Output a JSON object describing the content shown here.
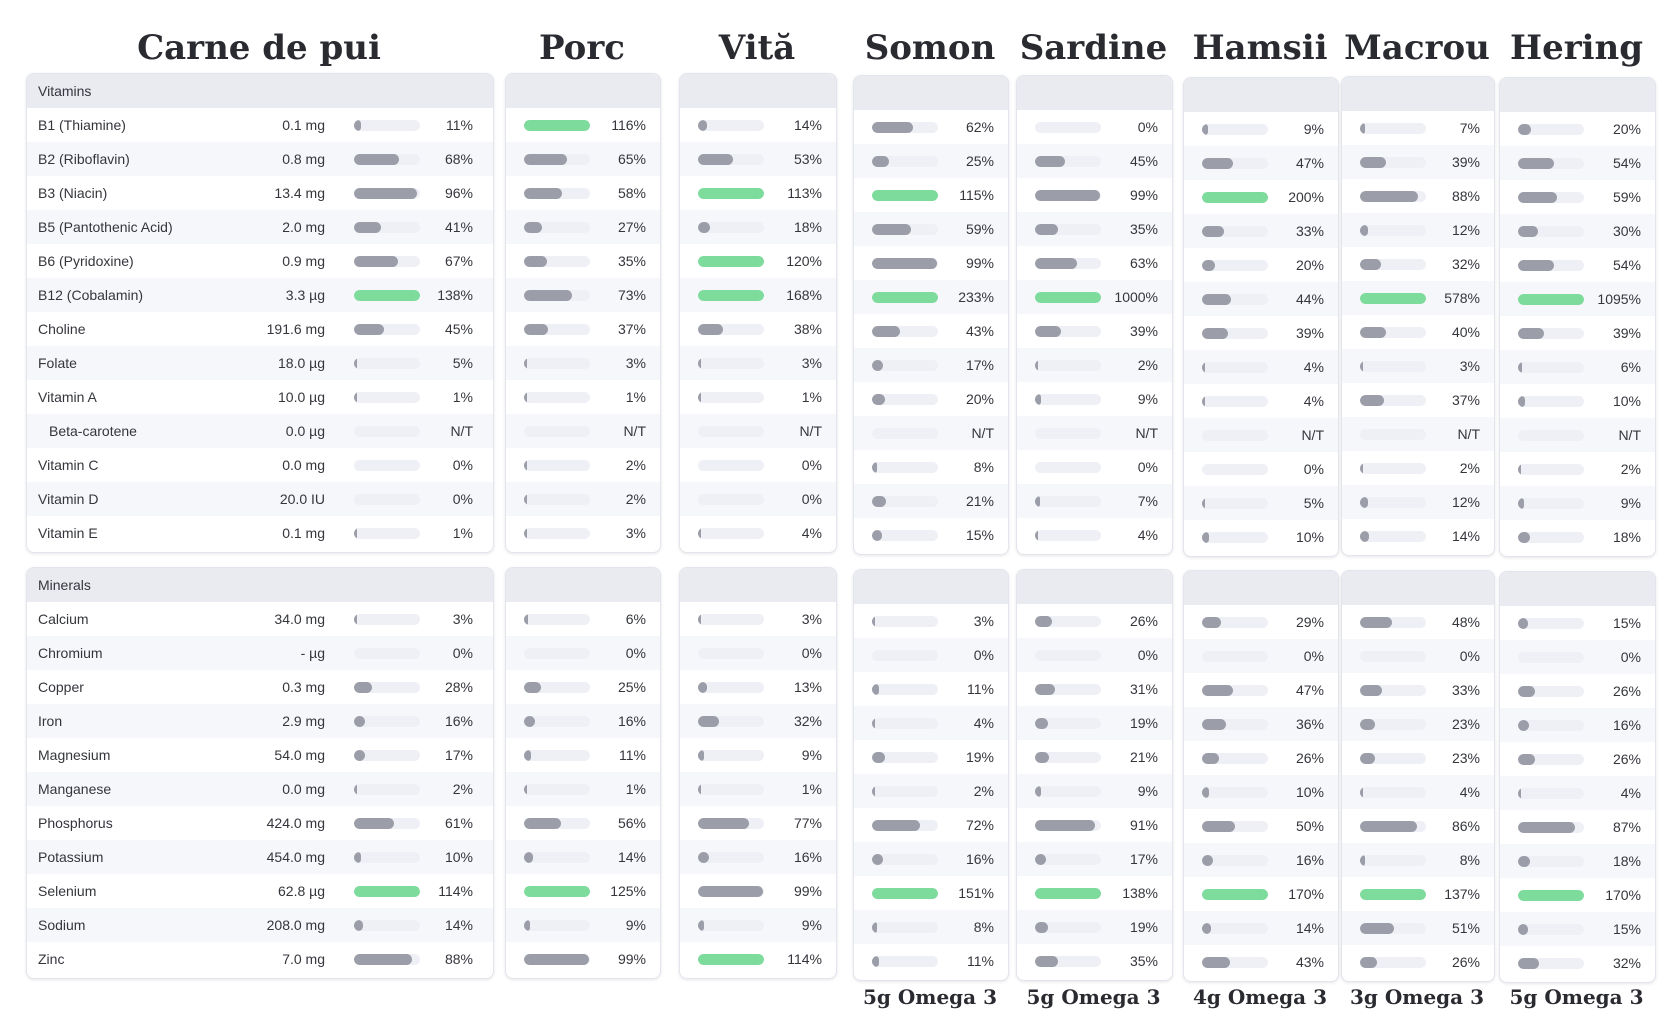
{
  "columns": [
    {
      "title": "Carne de pui",
      "vitamins": {
        "amounts": [
          "0.1 mg",
          "0.8 mg",
          "13.4 mg",
          "2.0 mg",
          "0.9 mg",
          "3.3 µg",
          "191.6 mg",
          "18.0 µg",
          "10.0 µg",
          "0.0 µg",
          "0.0 mg",
          "20.0 IU",
          "0.1 mg"
        ],
        "pct": [
          11,
          68,
          96,
          41,
          67,
          138,
          45,
          5,
          1,
          null,
          0,
          0,
          1
        ]
      },
      "minerals": {
        "amounts": [
          "34.0 mg",
          "- µg",
          "0.3 mg",
          "2.9 mg",
          "54.0 mg",
          "0.0 mg",
          "424.0 mg",
          "454.0 mg",
          "62.8 µg",
          "208.0 mg",
          "7.0 mg"
        ],
        "pct": [
          3,
          0,
          28,
          16,
          17,
          2,
          61,
          10,
          114,
          14,
          88
        ]
      }
    },
    {
      "title": "Porc",
      "vitamins": {
        "pct": [
          116,
          65,
          58,
          27,
          35,
          73,
          37,
          3,
          1,
          null,
          2,
          2,
          3
        ]
      },
      "minerals": {
        "pct": [
          6,
          0,
          25,
          16,
          11,
          1,
          56,
          14,
          125,
          9,
          99
        ]
      }
    },
    {
      "title": "Vită",
      "vitamins": {
        "pct": [
          14,
          53,
          113,
          18,
          120,
          168,
          38,
          3,
          1,
          null,
          0,
          0,
          4
        ]
      },
      "minerals": {
        "pct": [
          3,
          0,
          13,
          32,
          9,
          1,
          77,
          16,
          99,
          9,
          114
        ]
      }
    },
    {
      "title": "Somon",
      "omega": "5g Omega 3",
      "vitamins": {
        "pct": [
          62,
          25,
          115,
          59,
          99,
          233,
          43,
          17,
          20,
          null,
          8,
          21,
          15
        ]
      },
      "minerals": {
        "pct": [
          3,
          0,
          11,
          4,
          19,
          2,
          72,
          16,
          151,
          8,
          11
        ]
      }
    },
    {
      "title": "Sardine",
      "omega": "5g Omega 3",
      "vitamins": {
        "pct": [
          0,
          45,
          99,
          35,
          63,
          1000,
          39,
          2,
          9,
          null,
          0,
          7,
          4
        ]
      },
      "minerals": {
        "pct": [
          26,
          0,
          31,
          19,
          21,
          9,
          91,
          17,
          138,
          19,
          35
        ]
      }
    },
    {
      "title": "Hamsii",
      "omega": "4g Omega 3",
      "vitamins": {
        "pct": [
          9,
          47,
          200,
          33,
          20,
          44,
          39,
          4,
          4,
          null,
          0,
          5,
          10
        ]
      },
      "minerals": {
        "pct": [
          29,
          0,
          47,
          36,
          26,
          10,
          50,
          16,
          170,
          14,
          43
        ]
      }
    },
    {
      "title": "Macrou",
      "omega": "3g Omega 3",
      "vitamins": {
        "pct": [
          7,
          39,
          88,
          12,
          32,
          578,
          40,
          3,
          37,
          null,
          2,
          12,
          14
        ]
      },
      "minerals": {
        "pct": [
          48,
          0,
          33,
          23,
          23,
          4,
          86,
          8,
          137,
          51,
          26
        ]
      }
    },
    {
      "title": "Hering",
      "omega": "5g Omega 3",
      "vitamins": {
        "pct": [
          20,
          54,
          59,
          30,
          54,
          1095,
          39,
          6,
          10,
          null,
          2,
          9,
          18
        ]
      },
      "minerals": {
        "pct": [
          15,
          0,
          26,
          16,
          26,
          4,
          87,
          18,
          170,
          15,
          32
        ]
      }
    }
  ],
  "chart_data": {
    "type": "table",
    "sections": [
      {
        "name": "Vitamins",
        "rows": [
          "B1 (Thiamine)",
          "B2 (Riboflavin)",
          "B3 (Niacin)",
          "B5 (Pantothenic Acid)",
          "B6 (Pyridoxine)",
          "B12 (Cobalamin)",
          "Choline",
          "Folate",
          "Vitamin A",
          "Beta-carotene",
          "Vitamin C",
          "Vitamin D",
          "Vitamin E"
        ]
      },
      {
        "name": "Minerals",
        "rows": [
          "Calcium",
          "Chromium",
          "Copper",
          "Iron",
          "Magnesium",
          "Manganese",
          "Phosphorus",
          "Potassium",
          "Selenium",
          "Sodium",
          "Zinc"
        ]
      }
    ],
    "na_label": "N/T",
    "highlight_threshold_pct": 100,
    "colors": {
      "bar": "#9b9da8",
      "bar_high": "#7ddb9b",
      "track": "#eff0f5",
      "header": "#e9ebf1"
    }
  }
}
